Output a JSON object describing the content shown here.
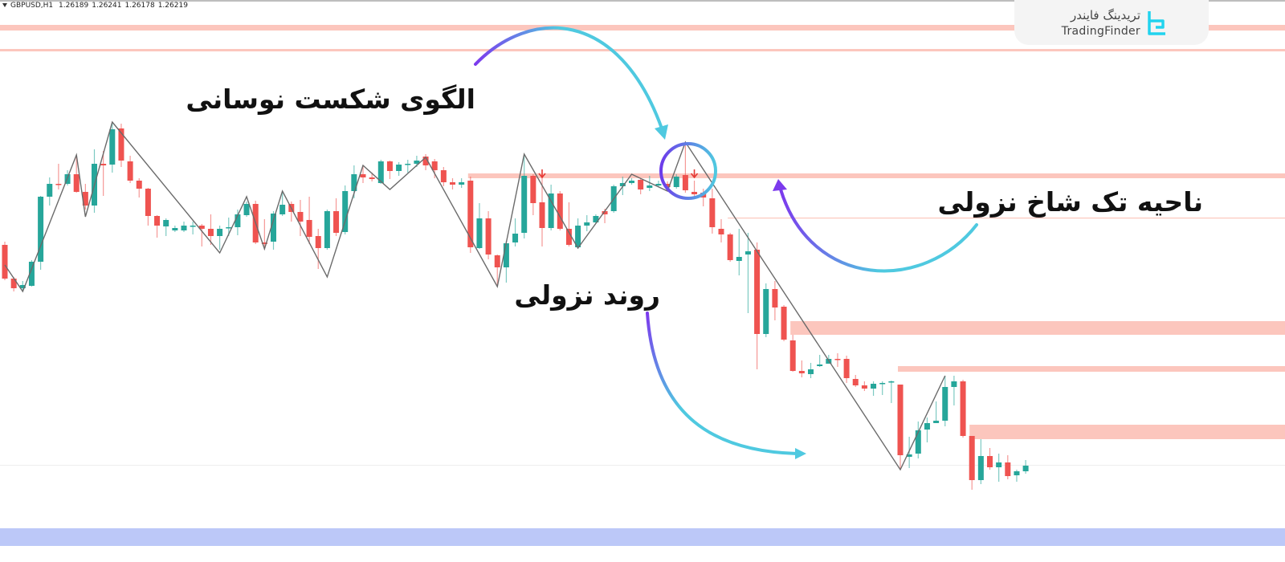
{
  "header": {
    "symbol": "GBPUSD,H1",
    "open": "1.26189",
    "high": "1.26241",
    "low": "1.26178",
    "close": "1.26219"
  },
  "logo": {
    "name_fa": "تریدینگ فایندر",
    "name_en": "TradingFinder",
    "icon": "tradingfinder-logo-icon",
    "color": "#22d3ee"
  },
  "annotations": {
    "swing_break": "الگوی شکست نوسانی",
    "bearish_unicorn_zone": "ناحیه تک شاخ نزولی",
    "downtrend": "روند نزولی"
  },
  "colors": {
    "bull": "#26a69a",
    "bear": "#ef5350",
    "zone": "#fcc6bd",
    "blue_band": "#bcc8f8",
    "zigzag": "#6b6b6b",
    "arrow_start": "#7c3aed",
    "arrow_end": "#4fc9e0",
    "signal_arrow": "#e53935"
  },
  "chart_data": {
    "type": "candlestick",
    "symbol": "GBPUSD",
    "timeframe": "H1",
    "ylim": [
      1.25,
      1.32
    ],
    "grid": false,
    "candles_ohlc": [
      [
        1.2895,
        1.2899,
        1.2851,
        1.2853
      ],
      [
        1.2853,
        1.2855,
        1.2837,
        1.2841
      ],
      [
        1.2841,
        1.285,
        1.2837,
        1.2845
      ],
      [
        1.2844,
        1.2876,
        1.2843,
        1.2874
      ],
      [
        1.2874,
        1.2956,
        1.2864,
        1.2955
      ],
      [
        1.2955,
        1.2979,
        1.2944,
        1.2971
      ],
      [
        1.2971,
        1.2996,
        1.2964,
        1.297
      ],
      [
        1.2971,
        1.2988,
        1.2969,
        1.2983
      ],
      [
        1.2983,
        1.3007,
        1.296,
        1.2961
      ],
      [
        1.2961,
        1.2971,
        1.2939,
        1.2944
      ],
      [
        1.2944,
        1.3014,
        1.2935,
        1.2996
      ],
      [
        1.2996,
        1.3012,
        1.2956,
        1.2994
      ],
      [
        1.2995,
        1.3048,
        1.2985,
        1.3039
      ],
      [
        1.304,
        1.3046,
        1.2992,
        1.3
      ],
      [
        1.2999,
        1.3006,
        1.2972,
        1.2975
      ],
      [
        1.2975,
        1.2978,
        1.2954,
        1.2965
      ],
      [
        1.2965,
        1.2966,
        1.2919,
        1.2931
      ],
      [
        1.2931,
        1.2932,
        1.2904,
        1.2919
      ],
      [
        1.2918,
        1.2928,
        1.2906,
        1.2926
      ],
      [
        1.2913,
        1.2919,
        1.2911,
        1.2916
      ],
      [
        1.2913,
        1.2924,
        1.2911,
        1.2919
      ],
      [
        1.2918,
        1.2924,
        1.2908,
        1.2919
      ],
      [
        1.2919,
        1.2921,
        1.2893,
        1.2915
      ],
      [
        1.2915,
        1.2933,
        1.2895,
        1.2906
      ],
      [
        1.2906,
        1.2919,
        1.2889,
        1.2915
      ],
      [
        1.2916,
        1.2929,
        1.2906,
        1.2917
      ],
      [
        1.2917,
        1.2939,
        1.2907,
        1.2933
      ],
      [
        1.2932,
        1.2949,
        1.293,
        1.2946
      ],
      [
        1.2946,
        1.295,
        1.2896,
        1.2898
      ],
      [
        1.2898,
        1.2927,
        1.2889,
        1.2896
      ],
      [
        1.2899,
        1.2937,
        1.2889,
        1.2934
      ],
      [
        1.2933,
        1.2962,
        1.2931,
        1.2945
      ],
      [
        1.2946,
        1.2949,
        1.2924,
        1.2936
      ],
      [
        1.2936,
        1.2951,
        1.2906,
        1.2924
      ],
      [
        1.2926,
        1.2955,
        1.2896,
        1.2905
      ],
      [
        1.2906,
        1.2915,
        1.2865,
        1.2891
      ],
      [
        1.2891,
        1.2939,
        1.2889,
        1.2937
      ],
      [
        1.2937,
        1.2953,
        1.2906,
        1.291
      ],
      [
        1.2911,
        1.2969,
        1.2908,
        1.2962
      ],
      [
        1.2962,
        1.2994,
        1.2953,
        1.2983
      ],
      [
        1.2983,
        1.2994,
        1.2972,
        1.2979
      ],
      [
        1.2979,
        1.2985,
        1.2974,
        1.2977
      ],
      [
        1.2972,
        1.3001,
        1.2971,
        1.2999
      ],
      [
        1.2999,
        1.3,
        1.2977,
        1.2987
      ],
      [
        1.2987,
        1.2998,
        1.2981,
        1.2995
      ],
      [
        1.2995,
        1.3001,
        1.2985,
        1.2996
      ],
      [
        1.2996,
        1.3006,
        1.2992,
        1.3
      ],
      [
        1.3005,
        1.3008,
        1.2988,
        1.2994
      ],
      [
        1.2999,
        1.3002,
        1.2978,
        1.2988
      ],
      [
        1.2988,
        1.2992,
        1.2968,
        1.2973
      ],
      [
        1.2973,
        1.2978,
        1.2964,
        1.297
      ],
      [
        1.297,
        1.2978,
        1.2966,
        1.2973
      ],
      [
        1.2975,
        1.298,
        1.2885,
        1.2892
      ],
      [
        1.2891,
        1.2947,
        1.289,
        1.2928
      ],
      [
        1.2928,
        1.2937,
        1.2877,
        1.2883
      ],
      [
        1.2882,
        1.2883,
        1.2843,
        1.2867
      ],
      [
        1.2867,
        1.29,
        1.2848,
        1.2897
      ],
      [
        1.2898,
        1.2928,
        1.2893,
        1.2909
      ],
      [
        1.291,
        1.3007,
        1.2903,
        1.2981
      ],
      [
        1.2981,
        1.2983,
        1.2932,
        1.2947
      ],
      [
        1.2948,
        1.2981,
        1.2893,
        1.2916
      ],
      [
        1.2916,
        1.297,
        1.2913,
        1.2959
      ],
      [
        1.2959,
        1.2962,
        1.2913,
        1.2915
      ],
      [
        1.2915,
        1.2948,
        1.2893,
        1.2895
      ],
      [
        1.2892,
        1.2928,
        1.289,
        1.2919
      ],
      [
        1.2919,
        1.2932,
        1.2912,
        1.2923
      ],
      [
        1.2923,
        1.2933,
        1.2922,
        1.2931
      ],
      [
        1.2937,
        1.294,
        1.2922,
        1.2933
      ],
      [
        1.2937,
        1.297,
        1.2935,
        1.2968
      ],
      [
        1.2968,
        1.298,
        1.2957,
        1.2972
      ],
      [
        1.2972,
        1.2978,
        1.297,
        1.2975
      ],
      [
        1.2976,
        1.2978,
        1.2958,
        1.2964
      ],
      [
        1.2966,
        1.2981,
        1.2962,
        1.2969
      ],
      [
        1.2969,
        1.2975,
        1.2967,
        1.2971
      ],
      [
        1.2971,
        1.2974,
        1.2965,
        1.2967
      ],
      [
        1.2967,
        1.2983,
        1.2965,
        1.298
      ],
      [
        1.2982,
        1.3023,
        1.296,
        1.2963
      ],
      [
        1.2961,
        1.2975,
        1.2953,
        1.2958
      ],
      [
        1.296,
        1.2965,
        1.2943,
        1.2954
      ],
      [
        1.2953,
        1.2965,
        1.2909,
        1.2917
      ],
      [
        1.2915,
        1.2927,
        1.2898,
        1.2908
      ],
      [
        1.2908,
        1.291,
        1.2874,
        1.2876
      ],
      [
        1.2875,
        1.2915,
        1.2857,
        1.288
      ],
      [
        1.2883,
        1.291,
        1.281,
        1.2887
      ],
      [
        1.2889,
        1.2898,
        1.274,
        1.2784
      ],
      [
        1.2784,
        1.2847,
        1.278,
        1.284
      ],
      [
        1.284,
        1.285,
        1.2801,
        1.2817
      ],
      [
        1.2818,
        1.282,
        1.2775,
        1.2777
      ],
      [
        1.2776,
        1.2783,
        1.2737,
        1.2738
      ],
      [
        1.2738,
        1.2751,
        1.273,
        1.2735
      ],
      [
        1.2734,
        1.2748,
        1.2729,
        1.274
      ],
      [
        1.2744,
        1.2758,
        1.2743,
        1.2746
      ],
      [
        1.2747,
        1.2758,
        1.2747,
        1.2753
      ],
      [
        1.2753,
        1.276,
        1.2743,
        1.2752
      ],
      [
        1.2753,
        1.2757,
        1.2723,
        1.2729
      ],
      [
        1.2728,
        1.2733,
        1.2718,
        1.272
      ],
      [
        1.272,
        1.2725,
        1.2713,
        1.2716
      ],
      [
        1.2716,
        1.2725,
        1.2707,
        1.2722
      ],
      [
        1.2722,
        1.2725,
        1.2708,
        1.2723
      ],
      [
        1.2724,
        1.2726,
        1.2698,
        1.2725
      ],
      [
        1.2721,
        1.2721,
        1.2615,
        1.2633
      ],
      [
        1.2631,
        1.2656,
        1.2617,
        1.2634
      ],
      [
        1.2635,
        1.2675,
        1.2629,
        1.2664
      ],
      [
        1.2665,
        1.268,
        1.2649,
        1.2673
      ],
      [
        1.2673,
        1.27,
        1.2673,
        1.2676
      ],
      [
        1.2676,
        1.2732,
        1.2669,
        1.2718
      ],
      [
        1.2718,
        1.2732,
        1.2695,
        1.2725
      ],
      [
        1.2725,
        1.2727,
        1.2655,
        1.2657
      ],
      [
        1.2657,
        1.2657,
        1.259,
        1.2602
      ],
      [
        1.2602,
        1.2653,
        1.2597,
        1.2632
      ],
      [
        1.2632,
        1.2642,
        1.2615,
        1.2618
      ],
      [
        1.2618,
        1.2635,
        1.26,
        1.2624
      ],
      [
        1.2624,
        1.2633,
        1.2603,
        1.2607
      ],
      [
        1.2608,
        1.2615,
        1.26,
        1.2613
      ],
      [
        1.2613,
        1.2627,
        1.261,
        1.262
      ]
    ],
    "zigzag": [
      [
        0,
        1.287
      ],
      [
        2,
        1.2837
      ],
      [
        8,
        1.3007
      ],
      [
        9,
        1.293
      ],
      [
        12,
        1.3048
      ],
      [
        24,
        1.2885
      ],
      [
        27,
        1.2955
      ],
      [
        29,
        1.289
      ],
      [
        31,
        1.2962
      ],
      [
        36,
        1.2855
      ],
      [
        40,
        1.2994
      ],
      [
        43,
        1.2964
      ],
      [
        47,
        1.3004
      ],
      [
        55,
        1.2843
      ],
      [
        58,
        1.3008
      ],
      [
        64,
        1.2891
      ],
      [
        70,
        1.2983
      ],
      [
        74,
        1.2962
      ],
      [
        76,
        1.3023
      ],
      [
        100,
        1.2615
      ],
      [
        105,
        1.2732
      ]
    ],
    "zones": [
      {
        "from_bar": null,
        "top": 1.3169,
        "bottom": 1.3162
      },
      {
        "from_bar": null,
        "top": 1.3139,
        "bottom": 1.3136
      },
      {
        "from_bar": 52,
        "top": 1.2984,
        "bottom": 1.2978
      },
      {
        "from_bar": 81,
        "top": 1.2929,
        "bottom": 1.2928
      },
      {
        "from_bar": 88,
        "top": 1.28,
        "bottom": 1.2783
      },
      {
        "from_bar": 100,
        "top": 1.2744,
        "bottom": 1.2737
      },
      {
        "from_bar": 108,
        "top": 1.2671,
        "bottom": 1.2653
      }
    ],
    "price_line": 1.2621,
    "blue_band": {
      "top": 1.2542,
      "bottom": 1.252
    },
    "sell_signals": [
      {
        "bar": 60,
        "price": 1.2983
      },
      {
        "bar": 77,
        "price": 1.2983
      }
    ]
  }
}
